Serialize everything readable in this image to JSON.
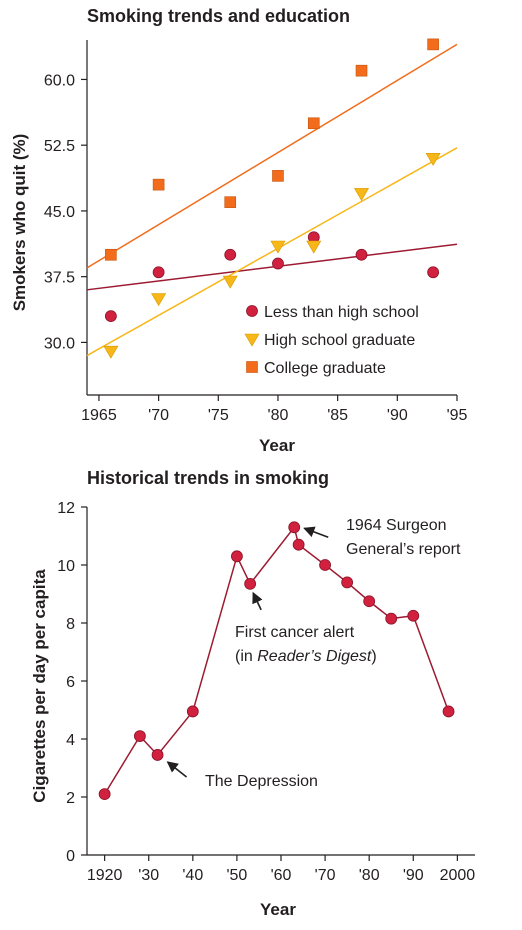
{
  "colors": {
    "less_than_hs": "#d1213f",
    "high_school": "#f7b718",
    "college": "#f26c1c",
    "hist_line": "#9d1b32",
    "hist_point": "#d1213f",
    "axis": "#231f20"
  },
  "chart_data": [
    {
      "type": "scatter",
      "title": "Smoking trends and education",
      "xlabel": "Year",
      "ylabel": "Smokers who quit (%)",
      "xlim": [
        1964,
        1995
      ],
      "ylim": [
        24,
        64.5
      ],
      "x_ticks": [
        1965,
        1970,
        1975,
        1980,
        1985,
        1990,
        1995
      ],
      "x_tick_labels": [
        "1965",
        "'70",
        "'75",
        "'80",
        "'85",
        "'90",
        "'95"
      ],
      "y_ticks": [
        30.0,
        37.5,
        45.0,
        52.5,
        60.0
      ],
      "y_tick_labels": [
        "30.0",
        "37.5",
        "45.0",
        "52.5",
        "60.0"
      ],
      "legend_position": "bottom-right",
      "series": [
        {
          "name": "Less than high school",
          "marker": "circle",
          "x": [
            1966,
            1970,
            1976,
            1980,
            1983,
            1987,
            1993
          ],
          "y": [
            33,
            38,
            40,
            39,
            42,
            40,
            38
          ],
          "trend": {
            "x": [
              1964,
              1995
            ],
            "y": [
              36.0,
              41.2
            ]
          }
        },
        {
          "name": "High school graduate",
          "marker": "triangle-down",
          "x": [
            1966,
            1970,
            1976,
            1980,
            1983,
            1987,
            1993
          ],
          "y": [
            29,
            35,
            37,
            41,
            41,
            47,
            51
          ],
          "trend": {
            "x": [
              1964,
              1995
            ],
            "y": [
              28.5,
              52.2
            ]
          }
        },
        {
          "name": "College graduate",
          "marker": "square",
          "x": [
            1966,
            1970,
            1976,
            1980,
            1983,
            1987,
            1993
          ],
          "y": [
            40,
            48,
            46,
            49,
            55,
            61,
            64
          ],
          "trend": {
            "x": [
              1964,
              1995
            ],
            "y": [
              38.5,
              64.0
            ]
          }
        }
      ]
    },
    {
      "type": "line",
      "title": "Historical trends in smoking",
      "xlabel": "Year",
      "ylabel": "Cigarettes per day per capita",
      "xlim": [
        1916,
        2004
      ],
      "ylim": [
        0,
        12
      ],
      "x_ticks": [
        1920,
        1930,
        1940,
        1950,
        1960,
        1970,
        1980,
        1990,
        2000
      ],
      "x_tick_labels": [
        "1920",
        "'30",
        "'40",
        "'50",
        "'60",
        "'70",
        "'80",
        "'90",
        "2000"
      ],
      "y_ticks": [
        0,
        2,
        4,
        6,
        8,
        10,
        12
      ],
      "y_tick_labels": [
        "0",
        "2",
        "4",
        "6",
        "8",
        "10",
        "12"
      ],
      "x": [
        1920,
        1928,
        1932,
        1940,
        1950,
        1953,
        1963,
        1964,
        1970,
        1975,
        1980,
        1985,
        1990,
        1998
      ],
      "y": [
        2.1,
        4.1,
        3.45,
        4.95,
        10.3,
        9.35,
        11.3,
        10.7,
        10.0,
        9.4,
        8.75,
        8.15,
        8.25,
        4.95
      ],
      "annotations": [
        {
          "lines": [
            "1964 Surgeon",
            "General’s report"
          ],
          "x": 1963,
          "y": 11.3
        },
        {
          "lines": [
            "First cancer alert"
          ],
          "line2_prefix": "(in ",
          "line2_italic": "Reader’s Digest",
          "line2_suffix": ")",
          "x": 1953,
          "y": 9.35
        },
        {
          "lines": [
            "The Depression"
          ],
          "x": 1932,
          "y": 3.45
        }
      ]
    }
  ]
}
